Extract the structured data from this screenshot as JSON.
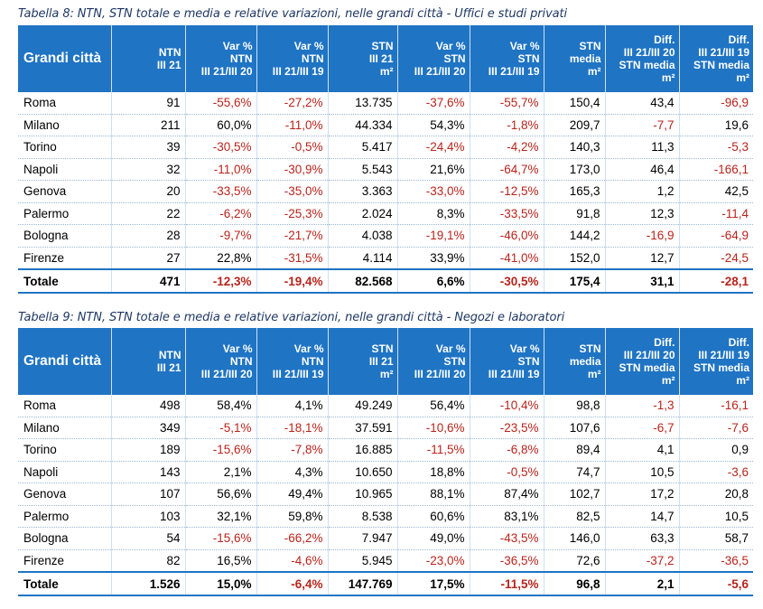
{
  "tables": [
    {
      "caption": "Tabella 8: NTN, STN totale e media e relative variazioni, nelle grandi città - Uffici e studi privati",
      "headers": [
        [
          "Grandi città"
        ],
        [
          "NTN",
          "III 21"
        ],
        [
          "Var %",
          "NTN",
          "III 21/III 20"
        ],
        [
          "Var %",
          "NTN",
          "III 21/III 19"
        ],
        [
          "STN",
          "III 21",
          "m²"
        ],
        [
          "Var %",
          "STN",
          "III 21/III 20"
        ],
        [
          "Var %",
          "STN",
          "III 21/III 19"
        ],
        [
          "STN",
          "media",
          "m²"
        ],
        [
          "Diff.",
          "III 21/III 20",
          "STN media",
          "m²"
        ],
        [
          "Diff.",
          "III 21/III 19",
          "STN media",
          "m²"
        ]
      ],
      "rows": [
        [
          "Roma",
          "91",
          "-55,6%",
          "-27,2%",
          "13.735",
          "-37,6%",
          "-55,7%",
          "150,4",
          "43,4",
          "-96,9"
        ],
        [
          "Milano",
          "211",
          "60,0%",
          "-11,0%",
          "44.334",
          "54,3%",
          "-1,8%",
          "209,7",
          "-7,7",
          "19,6"
        ],
        [
          "Torino",
          "39",
          "-30,5%",
          "-0,5%",
          "5.417",
          "-24,4%",
          "-4,2%",
          "140,3",
          "11,3",
          "-5,3"
        ],
        [
          "Napoli",
          "32",
          "-11,0%",
          "-30,9%",
          "5.543",
          "21,6%",
          "-64,7%",
          "173,0",
          "46,4",
          "-166,1"
        ],
        [
          "Genova",
          "20",
          "-33,5%",
          "-35,0%",
          "3.363",
          "-33,0%",
          "-12,5%",
          "165,3",
          "1,2",
          "42,5"
        ],
        [
          "Palermo",
          "22",
          "-6,2%",
          "-25,3%",
          "2.024",
          "8,3%",
          "-33,5%",
          "91,8",
          "12,3",
          "-11,4"
        ],
        [
          "Bologna",
          "28",
          "-9,7%",
          "-21,7%",
          "4.038",
          "-19,1%",
          "-46,0%",
          "144,2",
          "-16,9",
          "-64,9"
        ],
        [
          "Firenze",
          "27",
          "22,8%",
          "-31,5%",
          "4.114",
          "33,9%",
          "-41,0%",
          "152,0",
          "12,7",
          "-24,5"
        ]
      ],
      "total": [
        "Totale",
        "471",
        "-12,3%",
        "-19,4%",
        "82.568",
        "6,6%",
        "-30,5%",
        "175,4",
        "31,1",
        "-28,1"
      ]
    },
    {
      "caption": "Tabella 9: NTN, STN totale e media e relative variazioni, nelle grandi città - Negozi e laboratori",
      "headers": [
        [
          "Grandi città"
        ],
        [
          "NTN",
          "III 21"
        ],
        [
          "Var %",
          "NTN",
          "III 21/III 20"
        ],
        [
          "Var %",
          "NTN",
          "III 21/III 19"
        ],
        [
          "STN",
          "III 21",
          "m²"
        ],
        [
          "Var %",
          "STN",
          "III 21/III 20"
        ],
        [
          "Var %",
          "STN",
          "III 21/III 19"
        ],
        [
          "STN",
          "media",
          "m²"
        ],
        [
          "Diff.",
          "III 21/III 20",
          "STN media",
          "m²"
        ],
        [
          "Diff.",
          "III 21/III 19",
          "STN media",
          "m²"
        ]
      ],
      "rows": [
        [
          "Roma",
          "498",
          "58,4%",
          "4,1%",
          "49.249",
          "56,4%",
          "-10,4%",
          "98,8",
          "-1,3",
          "-16,1"
        ],
        [
          "Milano",
          "349",
          "-5,1%",
          "-18,1%",
          "37.591",
          "-10,6%",
          "-23,5%",
          "107,6",
          "-6,7",
          "-7,6"
        ],
        [
          "Torino",
          "189",
          "-15,6%",
          "-7,8%",
          "16.885",
          "-11,5%",
          "-6,8%",
          "89,4",
          "4,1",
          "0,9"
        ],
        [
          "Napoli",
          "143",
          "2,1%",
          "4,3%",
          "10.650",
          "18,8%",
          "-0,5%",
          "74,7",
          "10,5",
          "-3,6"
        ],
        [
          "Genova",
          "107",
          "56,6%",
          "49,4%",
          "10.965",
          "88,1%",
          "87,4%",
          "102,7",
          "17,2",
          "20,8"
        ],
        [
          "Palermo",
          "103",
          "32,1%",
          "59,8%",
          "8.538",
          "60,6%",
          "83,1%",
          "82,5",
          "14,7",
          "10,5"
        ],
        [
          "Bologna",
          "54",
          "-15,6%",
          "-66,2%",
          "7.947",
          "49,0%",
          "-43,5%",
          "146,0",
          "63,3",
          "58,7"
        ],
        [
          "Firenze",
          "82",
          "16,5%",
          "-4,6%",
          "5.945",
          "-23,0%",
          "-36,5%",
          "72,6",
          "-37,2",
          "-36,5"
        ]
      ],
      "total": [
        "Totale",
        "1.526",
        "15,0%",
        "-6,4%",
        "147.769",
        "17,5%",
        "-11,5%",
        "96,8",
        "2,1",
        "-5,6"
      ]
    }
  ],
  "colors": {
    "header_bg": "#1f74c4",
    "negative": "#b8241c",
    "caption": "#1f3864"
  }
}
